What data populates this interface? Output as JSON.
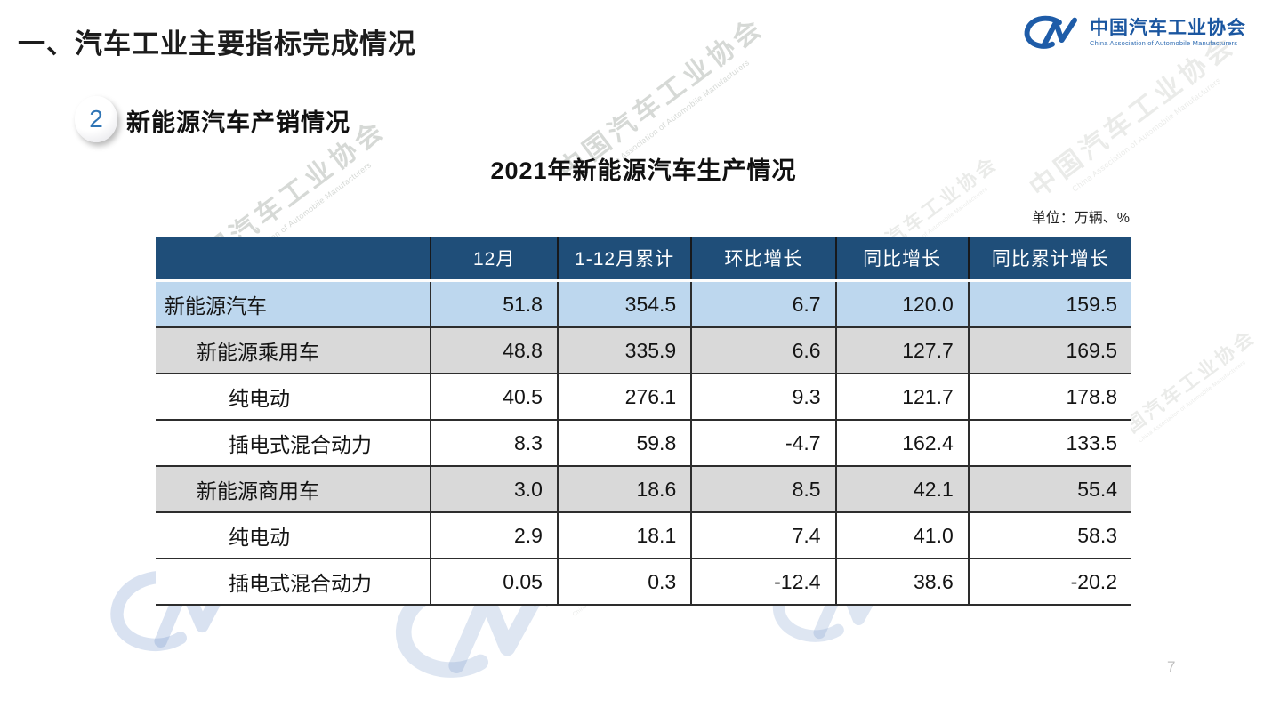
{
  "page": {
    "title": "一、汽车工业主要指标完成情况",
    "page_number": "7"
  },
  "logo": {
    "mark": "caam-cm-mark",
    "name_cn": "中国汽车工业协会",
    "name_en": "China Association of Automobile Manufacturers"
  },
  "section": {
    "badge": "2",
    "heading": "新能源汽车产销情况"
  },
  "table": {
    "title": "2021年新能源汽车生产情况",
    "unit_label": "单位：万辆、%",
    "columns": [
      "",
      "12月",
      "1-12月累计",
      "环比增长",
      "同比增长",
      "同比累计增长"
    ],
    "rows": [
      {
        "label": "新能源汽车",
        "indent": 0,
        "style": "blue",
        "values": [
          "51.8",
          "354.5",
          "6.7",
          "120.0",
          "159.5"
        ]
      },
      {
        "label": "新能源乘用车",
        "indent": 1,
        "style": "gray",
        "values": [
          "48.8",
          "335.9",
          "6.6",
          "127.7",
          "169.5"
        ]
      },
      {
        "label": "纯电动",
        "indent": 2,
        "style": "white",
        "values": [
          "40.5",
          "276.1",
          "9.3",
          "121.7",
          "178.8"
        ]
      },
      {
        "label": "插电式混合动力",
        "indent": 2,
        "style": "white",
        "values": [
          "8.3",
          "59.8",
          "-4.7",
          "162.4",
          "133.5"
        ]
      },
      {
        "label": "新能源商用车",
        "indent": 1,
        "style": "gray",
        "values": [
          "3.0",
          "18.6",
          "8.5",
          "42.1",
          "55.4"
        ]
      },
      {
        "label": "纯电动",
        "indent": 2,
        "style": "white",
        "values": [
          "2.9",
          "18.1",
          "7.4",
          "41.0",
          "58.3"
        ]
      },
      {
        "label": "插电式混合动力",
        "indent": 2,
        "style": "white",
        "values": [
          "0.05",
          "0.3",
          "-12.4",
          "38.6",
          "-20.2"
        ]
      }
    ]
  },
  "watermark": {
    "text_cn": "中国汽车工业协会",
    "text_en": "China Association of Automobile Manufacturers",
    "mark": "caam-cm-mark"
  },
  "colors": {
    "header_bg": "#1F4E79",
    "row_blue": "#BDD7EE",
    "row_gray": "#D9D9D9",
    "logo_blue": "#1E5CA8",
    "badge_blue": "#2E74B5"
  },
  "chart_data": {
    "type": "table",
    "title": "2021年新能源汽车生产情况",
    "unit": "万辆、%",
    "columns": [
      "12月",
      "1-12月累计",
      "环比增长",
      "同比增长",
      "同比累计增长"
    ],
    "rows": [
      {
        "category": "新能源汽车",
        "values": [
          51.8,
          354.5,
          6.7,
          120.0,
          159.5
        ]
      },
      {
        "category": "新能源乘用车",
        "values": [
          48.8,
          335.9,
          6.6,
          127.7,
          169.5
        ]
      },
      {
        "category": "新能源乘用车-纯电动",
        "values": [
          40.5,
          276.1,
          9.3,
          121.7,
          178.8
        ]
      },
      {
        "category": "新能源乘用车-插电式混合动力",
        "values": [
          8.3,
          59.8,
          -4.7,
          162.4,
          133.5
        ]
      },
      {
        "category": "新能源商用车",
        "values": [
          3.0,
          18.6,
          8.5,
          42.1,
          55.4
        ]
      },
      {
        "category": "新能源商用车-纯电动",
        "values": [
          2.9,
          18.1,
          7.4,
          41.0,
          58.3
        ]
      },
      {
        "category": "新能源商用车-插电式混合动力",
        "values": [
          0.05,
          0.3,
          -12.4,
          38.6,
          -20.2
        ]
      }
    ]
  }
}
